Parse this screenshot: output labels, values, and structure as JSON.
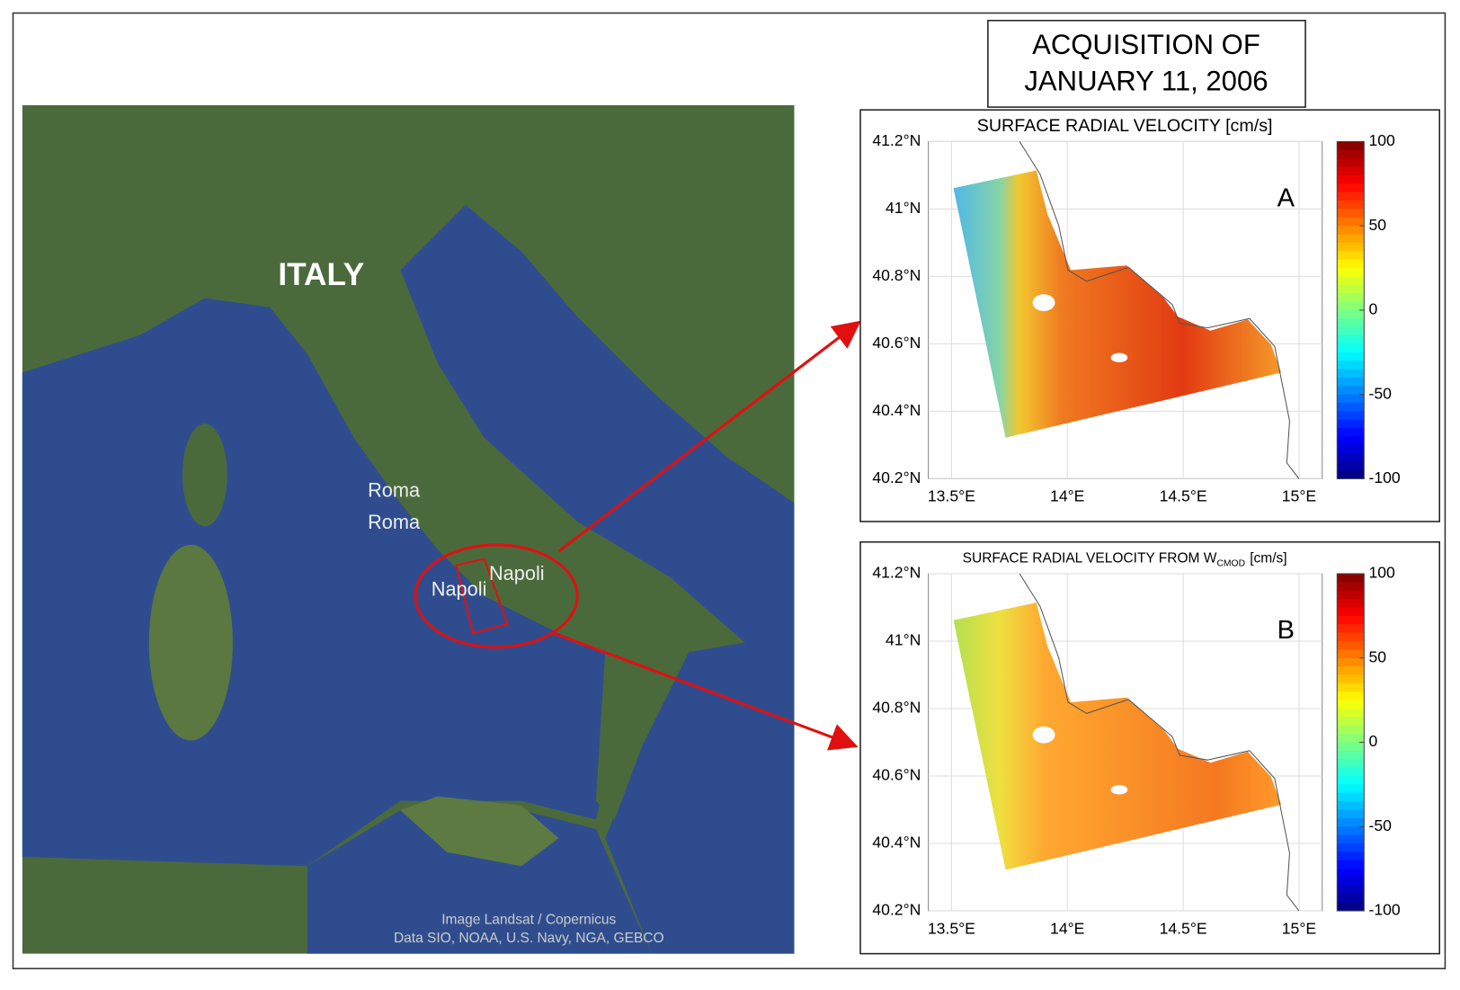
{
  "title": {
    "lines": [
      "ACQUISITION  OF",
      "JANUARY  11, 2006"
    ]
  },
  "map": {
    "country_label": "ITALY",
    "place_labels": [
      "Roma",
      "Roma",
      "Napoli",
      "Napoli"
    ],
    "attribution": [
      "Image Landsat / Copernicus",
      "Data SIO, NOAA, U.S. Navy, NGA, GEBCO"
    ]
  },
  "panels": [
    {
      "title": {
        "text": "SURFACE RADIAL VELOCITY [cm/s]"
      },
      "letter": "A",
      "xlim": [
        13.4,
        15.1
      ],
      "ylim": [
        40.2,
        41.2
      ],
      "xticks": [
        {
          "value": 13.5,
          "label": "13.5°E"
        },
        {
          "value": 14,
          "label": "14°E"
        },
        {
          "value": 14.5,
          "label": "14.5°E"
        },
        {
          "value": 15,
          "label": "15°E"
        }
      ],
      "yticks": [
        {
          "value": 40.2,
          "label": "40.2°N"
        },
        {
          "value": 40.4,
          "label": "40.4°N"
        },
        {
          "value": 40.6,
          "label": "40.6°N"
        },
        {
          "value": 40.8,
          "label": "40.8°N"
        },
        {
          "value": 41,
          "label": "41°N"
        },
        {
          "value": 41.2,
          "label": "41.2°N"
        }
      ],
      "clim": [
        -100,
        100
      ],
      "cticks": [
        100,
        50,
        0,
        -50,
        -100
      ],
      "grid": true
    },
    {
      "title": {
        "text": "SURFACE RADIAL VELOCITY FROM W",
        "subscript": "CMOD",
        "unit": "[cm/s]"
      },
      "letter": "B",
      "xlim": [
        13.4,
        15.1
      ],
      "ylim": [
        40.2,
        41.2
      ],
      "xticks": [
        {
          "value": 13.5,
          "label": "13.5°E"
        },
        {
          "value": 14,
          "label": "14°E"
        },
        {
          "value": 14.5,
          "label": "14.5°E"
        },
        {
          "value": 15,
          "label": "15°E"
        }
      ],
      "yticks": [
        {
          "value": 40.2,
          "label": "40.2°N"
        },
        {
          "value": 40.4,
          "label": "40.4°N"
        },
        {
          "value": 40.6,
          "label": "40.6°N"
        },
        {
          "value": 40.8,
          "label": "40.8°N"
        },
        {
          "value": 41,
          "label": "41°N"
        },
        {
          "value": 41.2,
          "label": "41.2°N"
        }
      ],
      "clim": [
        -100,
        100
      ],
      "cticks": [
        100,
        50,
        0,
        -50,
        -100
      ],
      "grid": true
    }
  ]
}
